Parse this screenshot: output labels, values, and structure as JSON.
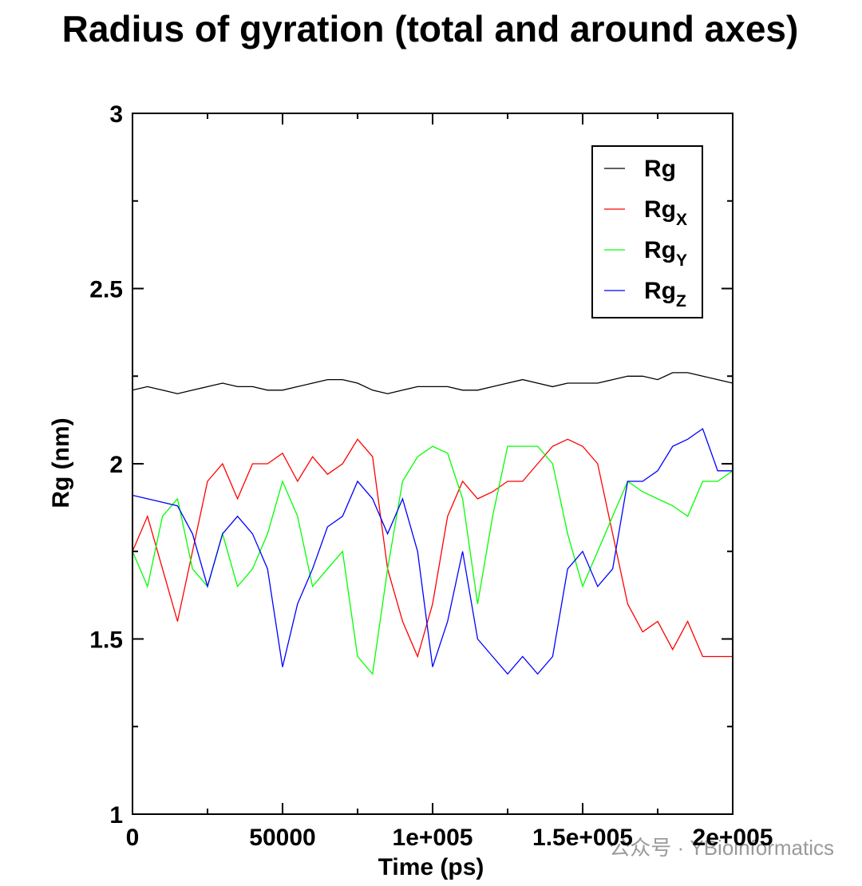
{
  "chart_data": {
    "type": "line",
    "title": "Radius of gyration (total and around axes)",
    "xlabel": "Time (ps)",
    "ylabel": "Rg (nm)",
    "watermark": "公众号 · YBioinformatics",
    "xlim": [
      0,
      200000
    ],
    "ylim": [
      1,
      3
    ],
    "xticks": [
      0,
      50000,
      {
        "value": 100000,
        "label": "1e+005"
      },
      {
        "value": 150000,
        "label": "1.5e+005"
      },
      {
        "value": 200000,
        "label": "2e+005"
      }
    ],
    "yticks": [
      1,
      1.5,
      2,
      2.5,
      3
    ],
    "xminor_ticks": [
      25000,
      75000,
      125000,
      175000
    ],
    "yminor_ticks": [
      1.25,
      1.75,
      2.25,
      2.75
    ],
    "legend": "upper right",
    "x": [
      0,
      5000,
      10000,
      15000,
      20000,
      25000,
      30000,
      35000,
      40000,
      45000,
      50000,
      55000,
      60000,
      65000,
      70000,
      75000,
      80000,
      85000,
      90000,
      95000,
      100000,
      105000,
      110000,
      115000,
      120000,
      125000,
      130000,
      135000,
      140000,
      145000,
      150000,
      155000,
      160000,
      165000,
      170000,
      175000,
      180000,
      185000,
      190000,
      195000,
      200000
    ],
    "series": [
      {
        "name": "Rg",
        "color": "#000000",
        "values": [
          2.21,
          2.22,
          2.21,
          2.2,
          2.21,
          2.22,
          2.23,
          2.22,
          2.22,
          2.21,
          2.21,
          2.22,
          2.23,
          2.24,
          2.24,
          2.23,
          2.21,
          2.2,
          2.21,
          2.22,
          2.22,
          2.22,
          2.21,
          2.21,
          2.22,
          2.23,
          2.24,
          2.23,
          2.22,
          2.23,
          2.23,
          2.23,
          2.24,
          2.25,
          2.25,
          2.24,
          2.26,
          2.26,
          2.25,
          2.24,
          2.23
        ]
      },
      {
        "name": "Rg",
        "subscript": "X",
        "color": "#ff0000",
        "values": [
          1.75,
          1.85,
          1.7,
          1.55,
          1.75,
          1.95,
          2.0,
          1.9,
          2.0,
          2.0,
          2.03,
          1.95,
          2.02,
          1.97,
          2.0,
          2.07,
          2.02,
          1.7,
          1.55,
          1.45,
          1.6,
          1.85,
          1.95,
          1.9,
          1.92,
          1.95,
          1.95,
          2.0,
          2.05,
          2.07,
          2.05,
          2.0,
          1.8,
          1.6,
          1.52,
          1.55,
          1.47,
          1.55,
          1.45,
          1.45,
          1.45
        ]
      },
      {
        "name": "Rg",
        "subscript": "Y",
        "color": "#00ff00",
        "values": [
          1.75,
          1.65,
          1.85,
          1.9,
          1.7,
          1.65,
          1.8,
          1.65,
          1.7,
          1.8,
          1.95,
          1.85,
          1.65,
          1.7,
          1.75,
          1.45,
          1.4,
          1.7,
          1.95,
          2.02,
          2.05,
          2.03,
          1.9,
          1.6,
          1.85,
          2.05,
          2.05,
          2.05,
          2.0,
          1.8,
          1.65,
          1.75,
          1.85,
          1.95,
          1.92,
          1.9,
          1.88,
          1.85,
          1.95,
          1.95,
          1.98
        ]
      },
      {
        "name": "Rg",
        "subscript": "Z",
        "color": "#0000ff",
        "values": [
          1.91,
          1.9,
          1.89,
          1.88,
          1.8,
          1.65,
          1.8,
          1.85,
          1.8,
          1.7,
          1.42,
          1.6,
          1.7,
          1.82,
          1.85,
          1.95,
          1.9,
          1.8,
          1.9,
          1.75,
          1.42,
          1.55,
          1.75,
          1.5,
          1.45,
          1.4,
          1.45,
          1.4,
          1.45,
          1.7,
          1.75,
          1.65,
          1.7,
          1.95,
          1.95,
          1.98,
          2.05,
          2.07,
          2.1,
          1.98,
          1.98
        ]
      }
    ]
  }
}
